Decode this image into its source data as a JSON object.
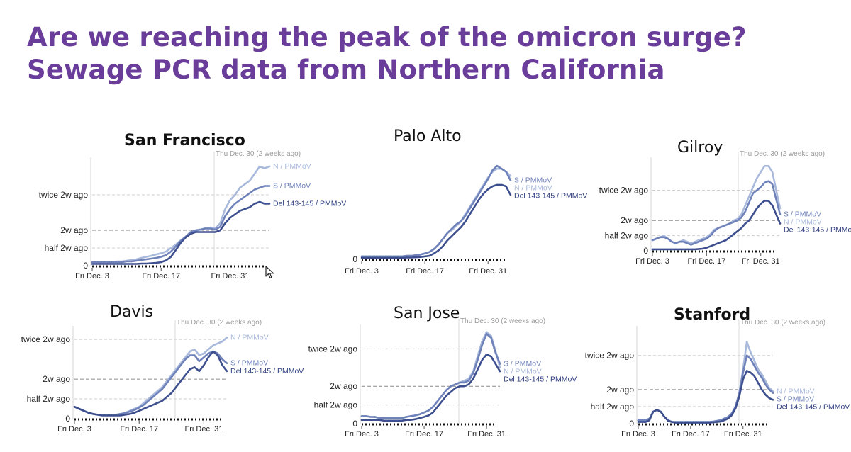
{
  "slide": {
    "title_line1": "Are we reaching the peak of the omicron surge?",
    "title_line2": "Sewage PCR data from Northern California",
    "title_color": "#6a3d9a"
  },
  "series_colors": {
    "N / PMMoV": "#a9b9dc",
    "S / PMMoV": "#6f82ba",
    "Del 143-145 / PMMoV": "#3d4f8f"
  },
  "chart_data": [
    {
      "type": "line",
      "title": "San Francisco",
      "title_bold": true,
      "x_labels": [
        "Fri Dec. 3",
        "Fri Dec. 17",
        "Fri Dec. 31"
      ],
      "x_label_index": [
        0,
        14,
        28
      ],
      "y_labels": [
        "twice 2w ago",
        "2w ago",
        "half 2w ago",
        "0"
      ],
      "y_values": [
        2,
        1,
        0.5,
        0
      ],
      "ylim": [
        0,
        2.9
      ],
      "annotation": "Thu Dec. 30 (2 weeks ago)",
      "annotation_index": 27,
      "series": [
        {
          "name": "N / PMMoV",
          "values": [
            0.1,
            0.1,
            0.1,
            0.1,
            0.1,
            0.12,
            0.12,
            0.14,
            0.16,
            0.18,
            0.22,
            0.25,
            0.28,
            0.32,
            0.35,
            0.4,
            0.5,
            0.6,
            0.72,
            0.82,
            0.92,
            0.98,
            1.02,
            1.06,
            1.08,
            1.05,
            1.2,
            1.6,
            1.85,
            2.0,
            2.2,
            2.3,
            2.4,
            2.6,
            2.8,
            2.75,
            2.8
          ]
        },
        {
          "name": "S / PMMoV",
          "values": [
            0.1,
            0.1,
            0.1,
            0.1,
            0.1,
            0.1,
            0.1,
            0.12,
            0.12,
            0.14,
            0.16,
            0.18,
            0.2,
            0.22,
            0.25,
            0.3,
            0.4,
            0.55,
            0.7,
            0.82,
            0.95,
            1.0,
            1.02,
            1.05,
            1.05,
            1.02,
            1.1,
            1.4,
            1.6,
            1.75,
            1.85,
            1.95,
            2.05,
            2.15,
            2.2,
            2.25,
            2.25
          ]
        },
        {
          "name": "Del 143-145 / PMMoV",
          "values": [
            0.05,
            0.05,
            0.05,
            0.05,
            0.05,
            0.05,
            0.05,
            0.05,
            0.05,
            0.05,
            0.06,
            0.06,
            0.07,
            0.08,
            0.1,
            0.15,
            0.25,
            0.45,
            0.65,
            0.8,
            0.9,
            0.95,
            0.95,
            0.95,
            0.95,
            0.95,
            1.0,
            1.2,
            1.35,
            1.45,
            1.55,
            1.6,
            1.65,
            1.75,
            1.8,
            1.75,
            1.75
          ]
        }
      ]
    },
    {
      "type": "line",
      "title": "Palo Alto",
      "title_bold": false,
      "x_labels": [
        "Fri Dec. 3",
        "Fri Dec. 17",
        "Fri Dec. 31"
      ],
      "x_label_index": [
        0,
        14,
        28
      ],
      "y_labels": [
        "0"
      ],
      "y_values": [
        0
      ],
      "ylim": [
        0,
        3.3
      ],
      "annotation": "",
      "series": [
        {
          "name": "S / PMMoV",
          "values": [
            0.1,
            0.1,
            0.1,
            0.1,
            0.1,
            0.1,
            0.1,
            0.1,
            0.1,
            0.1,
            0.12,
            0.12,
            0.14,
            0.16,
            0.2,
            0.25,
            0.35,
            0.5,
            0.7,
            0.9,
            1.05,
            1.2,
            1.3,
            1.5,
            1.75,
            2.0,
            2.25,
            2.5,
            2.75,
            3.05,
            3.2,
            3.1,
            3.0,
            2.7
          ]
        },
        {
          "name": "N / PMMoV",
          "values": [
            0.1,
            0.1,
            0.1,
            0.1,
            0.1,
            0.1,
            0.1,
            0.1,
            0.1,
            0.1,
            0.12,
            0.12,
            0.14,
            0.16,
            0.2,
            0.25,
            0.35,
            0.5,
            0.7,
            0.9,
            1.0,
            1.15,
            1.3,
            1.55,
            1.8,
            2.05,
            2.3,
            2.55,
            2.8,
            3.0,
            3.1,
            3.1,
            3.0,
            2.85
          ]
        },
        {
          "name": "Del 143-145 / PMMoV",
          "values": [
            0.05,
            0.05,
            0.05,
            0.05,
            0.05,
            0.05,
            0.05,
            0.05,
            0.05,
            0.05,
            0.06,
            0.06,
            0.07,
            0.08,
            0.1,
            0.12,
            0.2,
            0.3,
            0.45,
            0.65,
            0.8,
            0.95,
            1.1,
            1.3,
            1.55,
            1.8,
            2.05,
            2.25,
            2.4,
            2.5,
            2.55,
            2.55,
            2.5,
            2.2
          ]
        }
      ]
    },
    {
      "type": "line",
      "title": "Gilroy",
      "title_bold": false,
      "x_labels": [
        "Fri Dec. 3",
        "Fri Dec. 17",
        "Fri Dec. 31"
      ],
      "x_label_index": [
        0,
        14,
        28
      ],
      "y_labels": [
        "twice 2w ago",
        "2w ago",
        "half 2w ago",
        "0"
      ],
      "y_values": [
        2,
        1,
        0.5,
        0
      ],
      "ylim": [
        0,
        2.9
      ],
      "annotation": "Thu Dec. 30 (2 weeks ago)",
      "annotation_index": 30,
      "series": [
        {
          "name": "S / PMMoV",
          "values": [
            0.35,
            0.4,
            0.45,
            0.45,
            0.4,
            0.3,
            0.25,
            0.3,
            0.3,
            0.25,
            0.2,
            0.25,
            0.3,
            0.35,
            0.4,
            0.5,
            0.65,
            0.75,
            0.8,
            0.85,
            0.9,
            0.95,
            1.0,
            1.1,
            1.3,
            1.6,
            1.9,
            2.0,
            2.1,
            2.25,
            2.3,
            2.2,
            1.7,
            1.2
          ]
        },
        {
          "name": "N / PMMoV",
          "values": [
            0.35,
            0.4,
            0.45,
            0.5,
            0.4,
            0.3,
            0.25,
            0.3,
            0.35,
            0.3,
            0.25,
            0.3,
            0.35,
            0.4,
            0.45,
            0.55,
            0.7,
            0.75,
            0.8,
            0.85,
            0.9,
            1.0,
            1.05,
            1.2,
            1.5,
            1.8,
            2.1,
            2.4,
            2.6,
            2.8,
            2.8,
            2.6,
            2.0,
            1.4
          ]
        },
        {
          "name": "Del 143-145 / PMMoV",
          "values": [
            0.05,
            0.05,
            0.05,
            0.05,
            0.05,
            0.05,
            0.05,
            0.05,
            0.05,
            0.05,
            0.05,
            0.05,
            0.06,
            0.07,
            0.1,
            0.15,
            0.2,
            0.25,
            0.3,
            0.35,
            0.45,
            0.55,
            0.65,
            0.75,
            0.9,
            1.0,
            1.2,
            1.4,
            1.55,
            1.65,
            1.65,
            1.5,
            1.2,
            0.9
          ]
        }
      ]
    },
    {
      "type": "line",
      "title": "Davis",
      "title_bold": false,
      "x_labels": [
        "Fri Dec. 3",
        "Fri Dec. 17",
        "Fri Dec. 31"
      ],
      "x_label_index": [
        0,
        14,
        28
      ],
      "y_labels": [
        "twice 2w ago",
        "2w ago",
        "half 2w ago",
        "0"
      ],
      "y_values": [
        2,
        1,
        0.5,
        0
      ],
      "ylim": [
        0,
        2.2
      ],
      "annotation": "Thu Dec. 30 (2 weeks ago)",
      "annotation_index": 28,
      "series": [
        {
          "name": "N / PMMoV",
          "values": [
            0.3,
            0.25,
            0.2,
            0.15,
            0.12,
            0.1,
            0.1,
            0.1,
            0.1,
            0.1,
            0.12,
            0.15,
            0.2,
            0.25,
            0.3,
            0.4,
            0.5,
            0.6,
            0.7,
            0.8,
            0.95,
            1.1,
            1.25,
            1.4,
            1.55,
            1.7,
            1.75,
            1.6,
            1.65,
            1.75,
            1.85,
            1.9,
            1.95,
            2.05
          ]
        },
        {
          "name": "S / PMMoV",
          "values": [
            0.3,
            0.25,
            0.2,
            0.15,
            0.12,
            0.1,
            0.1,
            0.1,
            0.1,
            0.1,
            0.12,
            0.14,
            0.18,
            0.22,
            0.28,
            0.35,
            0.45,
            0.55,
            0.65,
            0.75,
            0.9,
            1.05,
            1.2,
            1.35,
            1.5,
            1.6,
            1.6,
            1.45,
            1.55,
            1.65,
            1.7,
            1.65,
            1.5,
            1.4
          ]
        },
        {
          "name": "Del 143-145 / PMMoV",
          "values": [
            0.3,
            0.25,
            0.2,
            0.15,
            0.12,
            0.1,
            0.08,
            0.08,
            0.08,
            0.08,
            0.08,
            0.1,
            0.12,
            0.15,
            0.2,
            0.25,
            0.3,
            0.35,
            0.4,
            0.45,
            0.55,
            0.65,
            0.8,
            0.95,
            1.1,
            1.25,
            1.3,
            1.2,
            1.35,
            1.55,
            1.7,
            1.6,
            1.35,
            1.2
          ]
        }
      ]
    },
    {
      "type": "line",
      "title": "San Jose",
      "title_bold": false,
      "x_labels": [
        "Fri Dec. 3",
        "Fri Dec. 17",
        "Fri Dec. 31"
      ],
      "x_label_index": [
        0,
        14,
        28
      ],
      "y_labels": [
        "twice 2w ago",
        "2w ago",
        "half 2w ago",
        "0"
      ],
      "y_values": [
        2,
        1,
        0.5,
        0
      ],
      "ylim": [
        0,
        2.5
      ],
      "annotation": "Thu Dec. 30 (2 weeks ago)",
      "annotation_index": 27,
      "series": [
        {
          "name": "S / PMMoV",
          "values": [
            0.2,
            0.2,
            0.18,
            0.18,
            0.15,
            0.15,
            0.15,
            0.15,
            0.15,
            0.15,
            0.18,
            0.2,
            0.22,
            0.25,
            0.3,
            0.35,
            0.45,
            0.6,
            0.75,
            0.9,
            1.0,
            1.05,
            1.1,
            1.1,
            1.15,
            1.35,
            1.7,
            2.1,
            2.4,
            2.3,
            1.9,
            1.6
          ]
        },
        {
          "name": "N / PMMoV",
          "values": [
            0.2,
            0.2,
            0.18,
            0.18,
            0.15,
            0.15,
            0.15,
            0.15,
            0.15,
            0.15,
            0.18,
            0.2,
            0.22,
            0.25,
            0.3,
            0.35,
            0.45,
            0.6,
            0.75,
            0.9,
            1.0,
            1.05,
            1.1,
            1.15,
            1.2,
            1.4,
            1.8,
            2.2,
            2.45,
            2.35,
            1.95,
            1.5
          ]
        },
        {
          "name": "Del 143-145 / PMMoV",
          "values": [
            0.1,
            0.1,
            0.1,
            0.1,
            0.1,
            0.08,
            0.08,
            0.08,
            0.08,
            0.08,
            0.1,
            0.1,
            0.12,
            0.15,
            0.18,
            0.22,
            0.3,
            0.45,
            0.6,
            0.75,
            0.85,
            0.95,
            1.0,
            1.0,
            1.05,
            1.2,
            1.45,
            1.7,
            1.85,
            1.8,
            1.6,
            1.4
          ]
        }
      ]
    },
    {
      "type": "line",
      "title": "Stanford",
      "title_bold": true,
      "x_labels": [
        "Fri Dec. 3",
        "Fri Dec. 17",
        "Fri Dec. 31"
      ],
      "x_label_index": [
        0,
        14,
        28
      ],
      "y_labels": [
        "twice 2w ago",
        "2w ago",
        "half 2w ago",
        "0"
      ],
      "y_values": [
        2,
        1,
        0.5,
        0
      ],
      "ylim": [
        0,
        2.7
      ],
      "annotation": "Thu Dec. 30 (2 weeks ago)",
      "annotation_index": 29,
      "series": [
        {
          "name": "N / PMMoV",
          "values": [
            0.1,
            0.1,
            0.1,
            0.15,
            0.35,
            0.4,
            0.35,
            0.2,
            0.1,
            0.05,
            0.05,
            0.05,
            0.05,
            0.05,
            0.05,
            0.05,
            0.05,
            0.05,
            0.05,
            0.05,
            0.06,
            0.08,
            0.1,
            0.15,
            0.2,
            0.3,
            0.5,
            0.9,
            1.6,
            2.4,
            2.1,
            1.85,
            1.6,
            1.45,
            1.25,
            1.05,
            0.95
          ]
        },
        {
          "name": "S / PMMoV",
          "values": [
            0.1,
            0.1,
            0.1,
            0.15,
            0.35,
            0.4,
            0.35,
            0.2,
            0.1,
            0.05,
            0.05,
            0.05,
            0.05,
            0.05,
            0.05,
            0.05,
            0.05,
            0.05,
            0.05,
            0.05,
            0.06,
            0.08,
            0.1,
            0.15,
            0.2,
            0.3,
            0.5,
            0.9,
            1.5,
            2.0,
            1.9,
            1.7,
            1.5,
            1.35,
            1.15,
            1.0,
            0.9
          ]
        },
        {
          "name": "Del 143-145 / PMMoV",
          "values": [
            0.05,
            0.05,
            0.05,
            0.1,
            0.35,
            0.4,
            0.35,
            0.2,
            0.08,
            0.05,
            0.03,
            0.03,
            0.03,
            0.03,
            0.03,
            0.03,
            0.03,
            0.03,
            0.03,
            0.03,
            0.04,
            0.05,
            0.06,
            0.1,
            0.15,
            0.25,
            0.45,
            0.8,
            1.3,
            1.55,
            1.5,
            1.4,
            1.2,
            1.0,
            0.85,
            0.75,
            0.7
          ]
        }
      ]
    }
  ]
}
